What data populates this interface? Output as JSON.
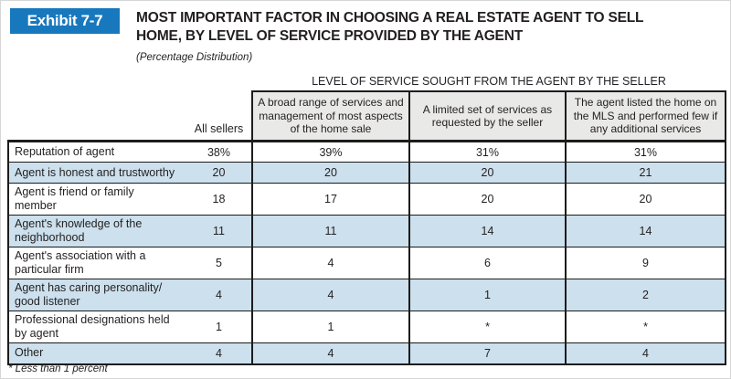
{
  "page": {
    "exhibit_label": "Exhibit 7-7",
    "title": "MOST IMPORTANT FACTOR IN CHOOSING A REAL ESTATE AGENT TO SELL\nHOME, BY LEVEL OF SERVICE PROVIDED BY THE AGENT",
    "subtitle": "(Percentage Distribution)",
    "footnote": "* Less than 1 percent"
  },
  "table": {
    "group_header": "LEVEL OF SERVICE SOUGHT FROM THE AGENT BY THE SELLER",
    "columns": {
      "all_sellers": "All sellers",
      "broad": "A broad range of services and\nmanagement of most aspects\nof the home sale",
      "limited": "A limited set of services as\nrequested by the seller",
      "mls": "The agent listed the home on\nthe MLS and performed few if\nany additional services"
    },
    "rows": [
      {
        "label": "Reputation of agent",
        "values": [
          "38%",
          "39%",
          "31%",
          "31%"
        ]
      },
      {
        "label": "Agent is honest and trustworthy",
        "values": [
          "20",
          "20",
          "20",
          "21"
        ]
      },
      {
        "label": "Agent is friend or family\nmember",
        "values": [
          "18",
          "17",
          "20",
          "20"
        ]
      },
      {
        "label": "Agent's knowledge of the\nneighborhood",
        "values": [
          "11",
          "11",
          "14",
          "14"
        ]
      },
      {
        "label": "Agent's association with a\nparticular firm",
        "values": [
          "5",
          "4",
          "6",
          "9"
        ]
      },
      {
        "label": "Agent has caring personality/\ngood listener",
        "values": [
          "4",
          "4",
          "1",
          "2"
        ]
      },
      {
        "label": "Professional designations held\nby agent",
        "values": [
          "1",
          "1",
          "*",
          "*"
        ]
      },
      {
        "label": "Other",
        "values": [
          "4",
          "4",
          "7",
          "4"
        ]
      }
    ]
  },
  "colors": {
    "badge_blue": "#1878bd",
    "row_blue": "#cce0ed",
    "header_gray": "#e9e9e7",
    "text": "#231f20",
    "border": "#1c1c1c"
  }
}
